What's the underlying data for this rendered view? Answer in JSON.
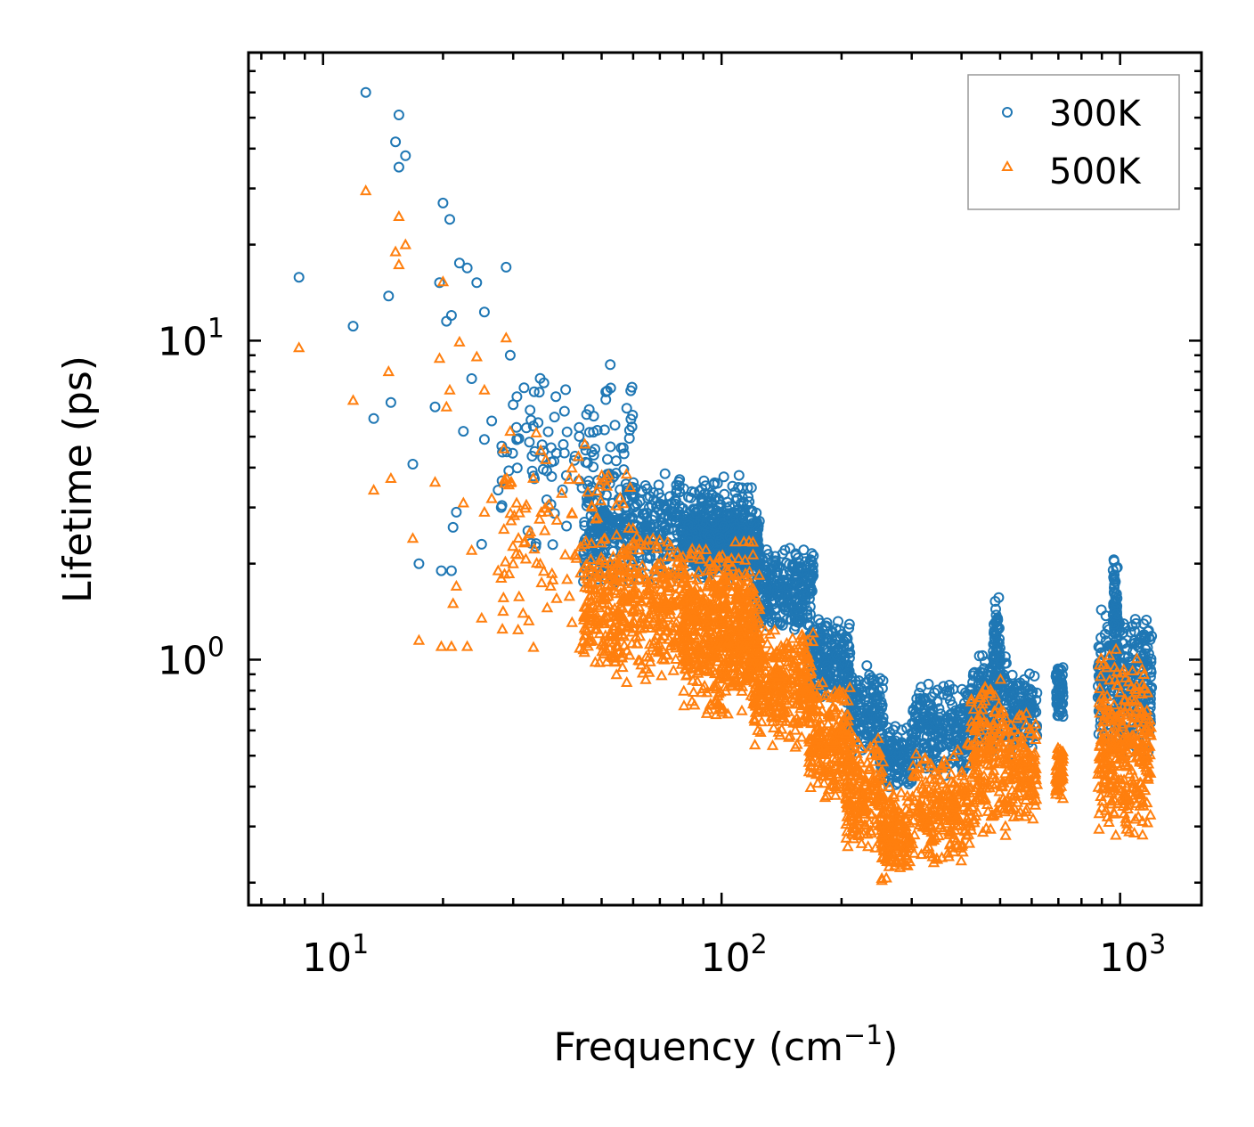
{
  "chart_data": {
    "type": "scatter",
    "title": "",
    "xlabel": "Frequency (cm",
    "xlabel_sup": "−1",
    "xlabel_end": ")",
    "ylabel": "Lifetime (ps)",
    "xscale": "log",
    "yscale": "log",
    "xlim": [
      6.5,
      1600
    ],
    "ylim": [
      0.17,
      80
    ],
    "x_ticks": [
      {
        "value": 10,
        "base": "10",
        "exp": "1"
      },
      {
        "value": 100,
        "base": "10",
        "exp": "2"
      },
      {
        "value": 1000,
        "base": "10",
        "exp": "3"
      }
    ],
    "y_ticks": [
      {
        "value": 1,
        "base": "10",
        "exp": "0"
      },
      {
        "value": 10,
        "base": "10",
        "exp": "1"
      }
    ],
    "legend_position": "top-right",
    "series": [
      {
        "name": "300K",
        "color": "#1f77b4",
        "marker": "circle",
        "points": [
          [
            8.7,
            15.8
          ],
          [
            11.9,
            11.1
          ],
          [
            12.8,
            60.0
          ],
          [
            13.4,
            5.7
          ],
          [
            14.6,
            13.8
          ],
          [
            14.8,
            6.4
          ],
          [
            15.2,
            42.0
          ],
          [
            15.5,
            51.0
          ],
          [
            15.5,
            35.0
          ],
          [
            16.1,
            38.0
          ],
          [
            16.8,
            4.1
          ],
          [
            17.4,
            2.0
          ],
          [
            19.1,
            6.2
          ],
          [
            19.6,
            15.2
          ],
          [
            19.8,
            1.9
          ],
          [
            20.0,
            27.0
          ],
          [
            20.4,
            11.5
          ],
          [
            20.8,
            24.0
          ],
          [
            21.0,
            1.9
          ],
          [
            21.0,
            12.0
          ],
          [
            21.2,
            2.6
          ],
          [
            21.6,
            2.9
          ],
          [
            22.0,
            17.5
          ],
          [
            22.5,
            5.2
          ],
          [
            23.0,
            16.9
          ],
          [
            23.6,
            7.6
          ],
          [
            24.3,
            15.2
          ],
          [
            25.0,
            2.3
          ],
          [
            25.4,
            12.3
          ],
          [
            25.4,
            4.9
          ],
          [
            26.5,
            5.6
          ],
          [
            27.5,
            3.4
          ],
          [
            28.0,
            3.0
          ],
          [
            28.8,
            17.0
          ],
          [
            29.5,
            9.0
          ],
          [
            30.0,
            6.3
          ]
        ],
        "bands": [
          {
            "x": [
              28,
              60
            ],
            "lo": 1.9,
            "hi": 10.0,
            "n": 120
          },
          {
            "x": [
              45,
              120
            ],
            "lo": 1.7,
            "hi": 3.9,
            "n": 600
          },
          {
            "x": [
              80,
              125
            ],
            "lo": 1.8,
            "hi": 3.0,
            "n": 400
          },
          {
            "x": [
              120,
              170
            ],
            "lo": 1.2,
            "hi": 2.3,
            "n": 280
          },
          {
            "x": [
              165,
              210
            ],
            "lo": 0.72,
            "hi": 1.4,
            "n": 200
          },
          {
            "x": [
              205,
              255
            ],
            "lo": 0.46,
            "hi": 1.0,
            "n": 160
          },
          {
            "x": [
              250,
              300
            ],
            "lo": 0.38,
            "hi": 0.65,
            "n": 130
          },
          {
            "x": [
              300,
              420
            ],
            "lo": 0.43,
            "hi": 0.85,
            "n": 230
          },
          {
            "x": [
              420,
              520
            ],
            "lo": 0.5,
            "hi": 1.1,
            "n": 160
          },
          {
            "x": [
              480,
              500
            ],
            "lo": 0.62,
            "hi": 1.6,
            "n": 90
          },
          {
            "x": [
              520,
              620
            ],
            "lo": 0.48,
            "hi": 0.95,
            "n": 130
          },
          {
            "x": [
              690,
              720
            ],
            "lo": 0.62,
            "hi": 0.98,
            "n": 60
          },
          {
            "x": [
              880,
              1200
            ],
            "lo": 0.5,
            "hi": 1.45,
            "n": 300
          },
          {
            "x": [
              960,
              985
            ],
            "lo": 0.8,
            "hi": 2.2,
            "n": 70
          }
        ]
      },
      {
        "name": "500K",
        "color": "#ff7f0e",
        "marker": "triangle",
        "points": [
          [
            8.7,
            9.5
          ],
          [
            11.9,
            6.5
          ],
          [
            12.8,
            29.5
          ],
          [
            13.4,
            3.4
          ],
          [
            14.6,
            8.0
          ],
          [
            14.8,
            3.7
          ],
          [
            15.2,
            19.0
          ],
          [
            15.5,
            17.3
          ],
          [
            15.5,
            24.5
          ],
          [
            16.1,
            20.0
          ],
          [
            16.8,
            2.4
          ],
          [
            17.4,
            1.15
          ],
          [
            19.1,
            3.6
          ],
          [
            19.6,
            8.8
          ],
          [
            19.8,
            1.1
          ],
          [
            20.0,
            15.3
          ],
          [
            20.4,
            6.2
          ],
          [
            20.8,
            7.0
          ],
          [
            21.0,
            1.1
          ],
          [
            21.2,
            1.5
          ],
          [
            21.6,
            1.7
          ],
          [
            22.0,
            9.9
          ],
          [
            22.5,
            3.1
          ],
          [
            23.0,
            1.1
          ],
          [
            23.6,
            2.2
          ],
          [
            24.3,
            8.9
          ],
          [
            25.0,
            1.35
          ],
          [
            25.4,
            7.0
          ],
          [
            25.4,
            2.9
          ],
          [
            26.5,
            3.2
          ],
          [
            27.5,
            1.9
          ],
          [
            28.0,
            1.8
          ],
          [
            28.8,
            10.2
          ],
          [
            29.5,
            5.2
          ],
          [
            30.0,
            2.0
          ]
        ],
        "bands": [
          {
            "x": [
              28,
              60
            ],
            "lo": 0.98,
            "hi": 5.5,
            "n": 120
          },
          {
            "x": [
              45,
              120
            ],
            "lo": 0.8,
            "hi": 2.6,
            "n": 650
          },
          {
            "x": [
              80,
              125
            ],
            "lo": 0.65,
            "hi": 2.0,
            "n": 400
          },
          {
            "x": [
              120,
              170
            ],
            "lo": 0.52,
            "hi": 1.3,
            "n": 300
          },
          {
            "x": [
              165,
              210
            ],
            "lo": 0.36,
            "hi": 0.9,
            "n": 220
          },
          {
            "x": [
              205,
              255
            ],
            "lo": 0.24,
            "hi": 0.58,
            "n": 180
          },
          {
            "x": [
              250,
              300
            ],
            "lo": 0.19,
            "hi": 0.42,
            "n": 150
          },
          {
            "x": [
              300,
              420
            ],
            "lo": 0.22,
            "hi": 0.55,
            "n": 230
          },
          {
            "x": [
              420,
              520
            ],
            "lo": 0.26,
            "hi": 0.95,
            "n": 180
          },
          {
            "x": [
              520,
              620
            ],
            "lo": 0.3,
            "hi": 0.7,
            "n": 130
          },
          {
            "x": [
              690,
              720
            ],
            "lo": 0.35,
            "hi": 0.55,
            "n": 60
          },
          {
            "x": [
              880,
              1200
            ],
            "lo": 0.26,
            "hi": 1.1,
            "n": 320
          }
        ]
      }
    ]
  }
}
